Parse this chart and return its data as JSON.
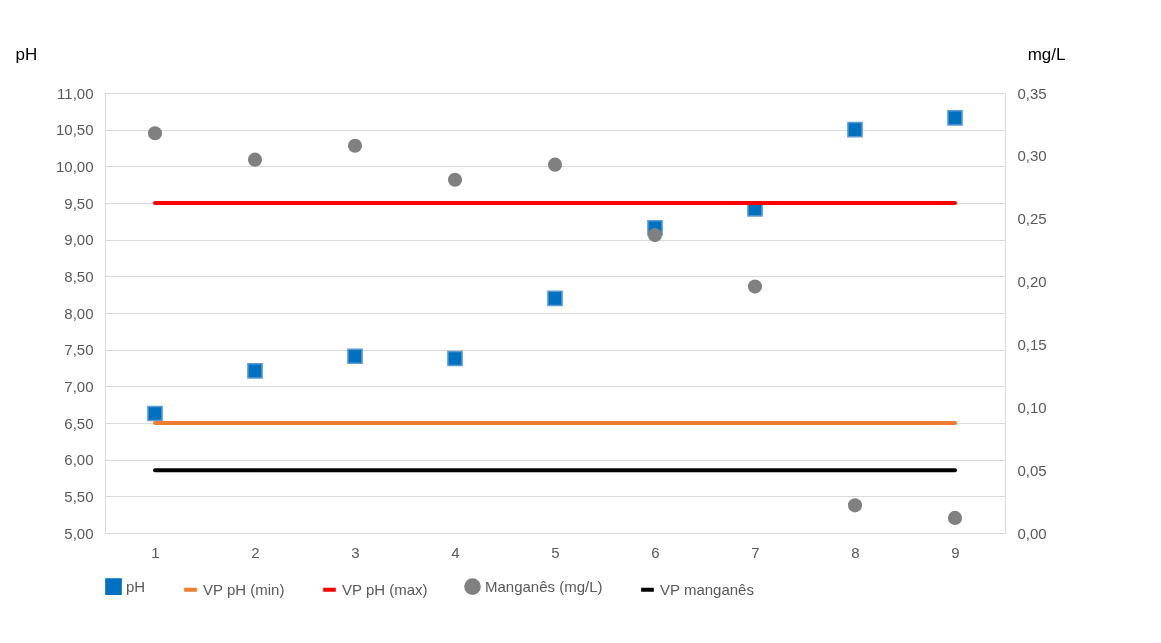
{
  "chart_data": {
    "type": "scatter",
    "categories": [
      "1",
      "2",
      "3",
      "4",
      "5",
      "6",
      "7",
      "8",
      "9"
    ],
    "ylabel": "pH",
    "y2label": "mg/L",
    "ylim": [
      5,
      11
    ],
    "yticks": [
      {
        "value": 5,
        "label": "5,00"
      },
      {
        "value": 5.5,
        "label": "5,50"
      },
      {
        "value": 6,
        "label": "6,00"
      },
      {
        "value": 6.5,
        "label": "6,50"
      },
      {
        "value": 7,
        "label": "7,00"
      },
      {
        "value": 7.5,
        "label": "7,50"
      },
      {
        "value": 8,
        "label": "8,00"
      },
      {
        "value": 8.5,
        "label": "8,50"
      },
      {
        "value": 9,
        "label": "9,00"
      },
      {
        "value": 9.5,
        "label": "9,50"
      },
      {
        "value": 10,
        "label": "10,00"
      },
      {
        "value": 10.5,
        "label": "10,50"
      },
      {
        "value": 11,
        "label": "11,00"
      }
    ],
    "y2lim": [
      0,
      0.35
    ],
    "y2ticks": [
      {
        "value": 0,
        "label": "0,00"
      },
      {
        "value": 0.05,
        "label": "0,05"
      },
      {
        "value": 0.1,
        "label": "0,10"
      },
      {
        "value": 0.15,
        "label": "0,15"
      },
      {
        "value": 0.2,
        "label": "0,20"
      },
      {
        "value": 0.25,
        "label": "0,25"
      },
      {
        "value": 0.3,
        "label": "0,30"
      },
      {
        "value": 0.35,
        "label": "0,35"
      }
    ],
    "grid": "y",
    "legend": "bottom",
    "series": [
      {
        "name": "pH",
        "marker": "square",
        "color": "#0070c0",
        "values": [
          6.63,
          7.21,
          7.41,
          7.38,
          8.2,
          9.16,
          9.42,
          10.5,
          10.66
        ]
      },
      {
        "name": "VP pH (min)",
        "type": "line",
        "color": "#ed7d31",
        "values": [
          6.5,
          6.5,
          6.5,
          6.5,
          6.5,
          6.5,
          6.5,
          6.5,
          6.5
        ]
      },
      {
        "name": "VP pH (max)",
        "type": "line",
        "color": "#ff0000",
        "values": [
          9.5,
          9.5,
          9.5,
          9.5,
          9.5,
          9.5,
          9.5,
          9.5,
          9.5
        ]
      },
      {
        "name": "Manganês (mg/L)",
        "marker": "circle",
        "axis": "y2",
        "color": "#808080",
        "values": [
          0.318,
          0.297,
          0.308,
          0.281,
          0.293,
          0.237,
          0.196,
          0.022,
          0.012
        ]
      },
      {
        "name": "VP manganês",
        "type": "line",
        "axis": "y2",
        "color": "#000000",
        "values": [
          0.05,
          0.05,
          0.05,
          0.05,
          0.05,
          0.05,
          0.05,
          0.05,
          0.05
        ]
      }
    ]
  }
}
